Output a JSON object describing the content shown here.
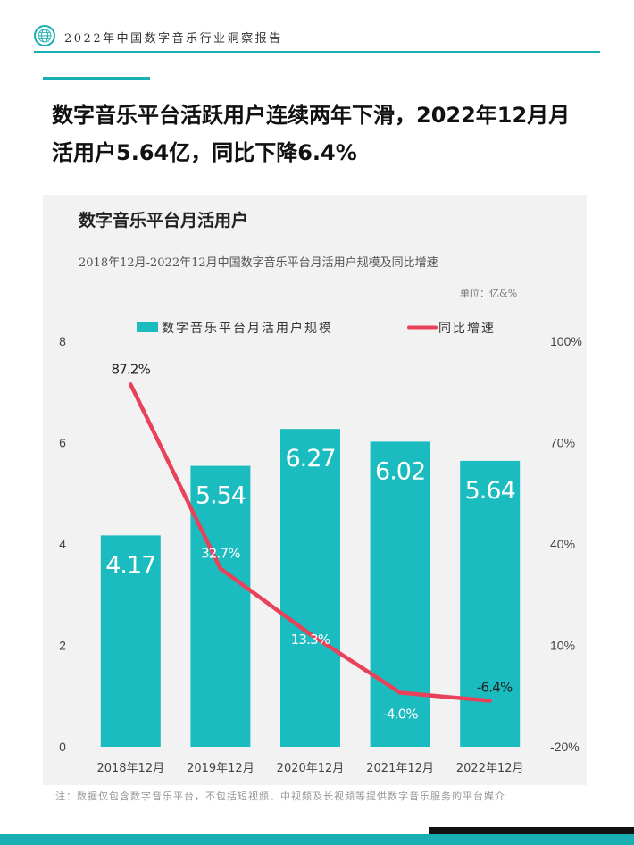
{
  "header": {
    "title": "2022年中国数字音乐行业洞察报告"
  },
  "headline": {
    "line1": "数字音乐平台活跃用户连续两年下滑，2022年12月月",
    "line2": "活用户5.64亿，同比下降6.4%"
  },
  "colors": {
    "accent": "#19aeb1",
    "bar": "#1abcc0",
    "line": "#e8425a",
    "panel": "#f2f2f2"
  },
  "chart_data": {
    "type": "bar",
    "title": "数字音乐平台月活用户",
    "subtitle": "2018年12月-2022年12月中国数字音乐平台月活用户规模及同比增速",
    "unit": "单位：亿&%",
    "categories": [
      "2018年12月",
      "2019年12月",
      "2020年12月",
      "2021年12月",
      "2022年12月"
    ],
    "series": [
      {
        "name": "数字音乐平台月活用户规模",
        "type": "bar",
        "axis": "left",
        "values": [
          4.17,
          5.54,
          6.27,
          6.02,
          5.64
        ],
        "labels": [
          "4.17",
          "5.54",
          "6.27",
          "6.02",
          "5.64"
        ]
      },
      {
        "name": "同比增速",
        "type": "line",
        "axis": "right",
        "values": [
          87.2,
          32.7,
          13.3,
          -4.0,
          -6.4
        ],
        "labels": [
          "87.2%",
          "32.7%",
          "13.3%",
          "-4.0%",
          "-6.4%"
        ]
      }
    ],
    "y_left": {
      "range": [
        0,
        8
      ],
      "ticks": [
        "0",
        "2",
        "4",
        "6",
        "8"
      ]
    },
    "y_right": {
      "range": [
        -20,
        100
      ],
      "ticks": [
        "-20%",
        "10%",
        "40%",
        "70%",
        "100%"
      ]
    },
    "legend_position": "top",
    "grid": false
  },
  "footnote": "注：数据仅包含数字音乐平台，不包括短视频、中视频及长视频等提供数字音乐服务的平台媒介"
}
